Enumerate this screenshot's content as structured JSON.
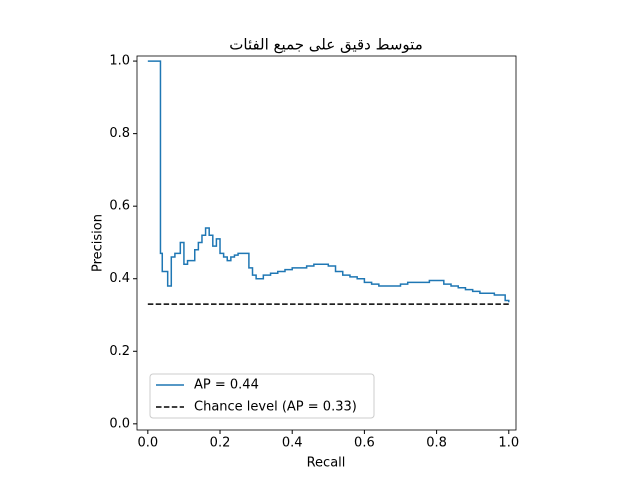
{
  "chart_data": {
    "type": "line",
    "step": "post",
    "title": "متوسط دقيق على جميع الفئات",
    "x_label": "Recall",
    "y_label": "Precision",
    "xlim": [
      -0.03,
      1.02
    ],
    "ylim": [
      -0.017,
      1.014
    ],
    "xticks": [
      {
        "value": 0,
        "label": "0.0"
      },
      {
        "value": 0.2,
        "label": "0.2"
      },
      {
        "value": 0.4,
        "label": "0.4"
      },
      {
        "value": 0.6,
        "label": "0.6"
      },
      {
        "value": 0.8,
        "label": "0.8"
      },
      {
        "value": 1,
        "label": "1.0"
      }
    ],
    "yticks": [
      {
        "value": 0,
        "label": "0.0"
      },
      {
        "value": 0.2,
        "label": "0.2"
      },
      {
        "value": 0.4,
        "label": "0.4"
      },
      {
        "value": 0.6,
        "label": "0.6"
      },
      {
        "value": 0.8,
        "label": "0.8"
      },
      {
        "value": 1,
        "label": "1.0"
      }
    ],
    "legend": "lower left",
    "grid": false,
    "series": [
      {
        "name": "AP = 0.44",
        "color": "#1f77b4",
        "dash": false,
        "x": [
          0,
          0.035,
          0.04,
          0.055,
          0.065,
          0.075,
          0.09,
          0.1,
          0.11,
          0.13,
          0.14,
          0.15,
          0.16,
          0.17,
          0.18,
          0.19,
          0.2,
          0.21,
          0.22,
          0.23,
          0.24,
          0.25,
          0.26,
          0.28,
          0.29,
          0.3,
          0.32,
          0.34,
          0.36,
          0.38,
          0.4,
          0.42,
          0.44,
          0.46,
          0.48,
          0.5,
          0.52,
          0.54,
          0.56,
          0.58,
          0.6,
          0.62,
          0.64,
          0.66,
          0.68,
          0.7,
          0.72,
          0.74,
          0.76,
          0.78,
          0.8,
          0.82,
          0.84,
          0.86,
          0.88,
          0.9,
          0.92,
          0.94,
          0.96,
          0.98,
          0.99,
          1.0
        ],
        "values": [
          1.0,
          0.47,
          0.42,
          0.38,
          0.46,
          0.47,
          0.5,
          0.44,
          0.45,
          0.48,
          0.5,
          0.52,
          0.54,
          0.52,
          0.49,
          0.51,
          0.47,
          0.46,
          0.45,
          0.46,
          0.465,
          0.47,
          0.47,
          0.43,
          0.41,
          0.4,
          0.41,
          0.415,
          0.42,
          0.425,
          0.43,
          0.43,
          0.435,
          0.44,
          0.44,
          0.435,
          0.42,
          0.41,
          0.405,
          0.4,
          0.39,
          0.385,
          0.38,
          0.38,
          0.38,
          0.385,
          0.39,
          0.39,
          0.39,
          0.395,
          0.395,
          0.385,
          0.38,
          0.375,
          0.37,
          0.365,
          0.36,
          0.36,
          0.355,
          0.355,
          0.34,
          0.335
        ]
      },
      {
        "name": "Chance level (AP = 0.33)",
        "color": "#000000",
        "dash": true,
        "x": [
          0,
          1
        ],
        "values": [
          0.33,
          0.33
        ]
      }
    ]
  }
}
